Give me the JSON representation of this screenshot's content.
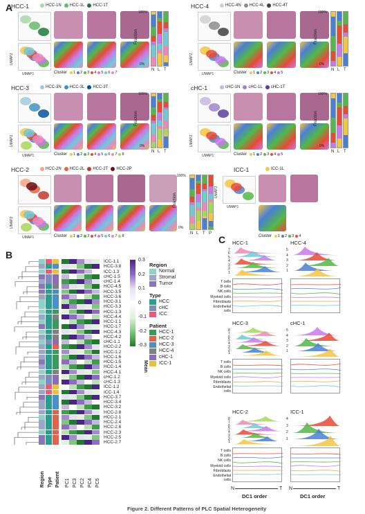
{
  "panel_a": {
    "label": "A",
    "umap_x": "UMAP1",
    "umap_y": "UMAP2",
    "cluster_word": "Cluster",
    "fraction_label": "Fraction",
    "tick_100": "100%",
    "tick_0": "0%",
    "blocks": [
      {
        "title": "HCC-1",
        "samples": [
          {
            "name": "HCC-1N",
            "color": "#a8d8a8"
          },
          {
            "name": "HCC-1L",
            "color": "#66bb6a"
          },
          {
            "name": "HCC-1T",
            "color": "#1b7a3a"
          }
        ],
        "clusters": [
          "1",
          "2",
          "3",
          "4",
          "5",
          "6",
          "7"
        ],
        "bar_labels": [
          "N",
          "L",
          "T"
        ]
      },
      {
        "title": "HCC-4",
        "samples": [
          {
            "name": "HCC-4N",
            "color": "#d0d0d0"
          },
          {
            "name": "HCC-4L",
            "color": "#8c8c8c"
          },
          {
            "name": "HCC-4T",
            "color": "#404040"
          }
        ],
        "clusters": [
          "1",
          "2",
          "3",
          "4",
          "5"
        ],
        "bar_labels": [
          "N",
          "L",
          "T"
        ]
      },
      {
        "title": "HCC-3",
        "samples": [
          {
            "name": "HCC-3N",
            "color": "#9ecae1"
          },
          {
            "name": "HCC-3L",
            "color": "#4292c6"
          },
          {
            "name": "HCC-3T",
            "color": "#08519c"
          }
        ],
        "clusters": [
          "1",
          "2",
          "3",
          "4",
          "5",
          "6",
          "7",
          "8"
        ],
        "bar_labels": [
          "N",
          "L",
          "T"
        ]
      },
      {
        "title": "cHC-1",
        "samples": [
          {
            "name": "cHC-1N",
            "color": "#c6b8e3"
          },
          {
            "name": "cHC-1L",
            "color": "#9e86cc"
          },
          {
            "name": "cHC-1T",
            "color": "#5e3c99"
          }
        ],
        "clusters": [
          "1",
          "2",
          "3",
          "4",
          "5"
        ],
        "bar_labels": [
          "N",
          "L",
          "T"
        ]
      },
      {
        "title": "HCC-2",
        "samples": [
          {
            "name": "HCC-2N",
            "color": "#f4a582"
          },
          {
            "name": "HCC-2L",
            "color": "#e8603c"
          },
          {
            "name": "HCC-2T",
            "color": "#c0392b"
          },
          {
            "name": "HCC-2P",
            "color": "#6b0f1a"
          }
        ],
        "clusters": [
          "1",
          "2",
          "3",
          "4",
          "5",
          "6",
          "7",
          "8"
        ],
        "bar_labels": [
          "N",
          "L",
          "T",
          "P"
        ]
      },
      {
        "title": "ICC-1",
        "samples": [
          {
            "name": "ICC-1L",
            "color": "#f2c94c"
          }
        ],
        "clusters": [
          "1",
          "2",
          "3",
          "4"
        ],
        "bar_labels": []
      }
    ],
    "cluster_colors": [
      "#f4c542",
      "#4a7fd6",
      "#54b848",
      "#e64b35",
      "#c879e8",
      "#6ec9d9",
      "#f088b6",
      "#a7d65a"
    ]
  },
  "panel_b": {
    "label": "B",
    "legend_region_title": "Region",
    "legend_region": [
      {
        "name": "Normal",
        "color": "#8fd1c6"
      },
      {
        "name": "Stromal",
        "color": "#9aa7c7"
      },
      {
        "name": "Tumor",
        "color": "#8a76b6"
      }
    ],
    "legend_type_title": "Type",
    "legend_type": [
      {
        "name": "HCC",
        "color": "#2a9d8f"
      },
      {
        "name": "cHC",
        "color": "#7a8fbf"
      },
      {
        "name": "ICC",
        "color": "#e85d75"
      }
    ],
    "legend_patient_title": "Patient",
    "legend_patient": [
      {
        "name": "HCC-1",
        "color": "#3c9a5f"
      },
      {
        "name": "HCC-2",
        "color": "#e0634a"
      },
      {
        "name": "HCC-3",
        "color": "#4a90c8"
      },
      {
        "name": "HCC-4",
        "color": "#808080"
      },
      {
        "name": "cHC-1",
        "color": "#8c6cb5"
      },
      {
        "name": "ICC-1",
        "color": "#e9c23a"
      }
    ],
    "colorbar_title": "Mean",
    "colorbar_ticks": [
      "0.3",
      "0.2",
      "0.1",
      "0",
      "-0.1",
      "-0.2",
      "-0.3"
    ],
    "col_bottom_labels": [
      "Region",
      "Type",
      "Patient",
      "PC1",
      "PC3",
      "PC2",
      "PC4",
      "PC5"
    ],
    "rows": [
      "ICC-1.1",
      "HCC-3.8",
      "ICC-1.3",
      "cHC-1.5",
      "cHC-1.4",
      "HCC-4.5",
      "HCC-3.5",
      "HCC-3.6",
      "HCC-3.1",
      "HCC-3.3",
      "HCC-1.3",
      "HCC-4.4",
      "HCC-1.1",
      "HCC-1.7",
      "HCC-4.3",
      "HCC-4.2",
      "cHC-1.1",
      "HCC-2.2",
      "HCC-1.2",
      "HCC-1.6",
      "HCC-1.5",
      "HCC-1.4",
      "HCC-4.1",
      "cHC-1.2",
      "cHC-1.3",
      "ICC-1.2",
      "ICC-1.4",
      "HCC-3.7",
      "HCC-3.4",
      "HCC-3.2",
      "HCC-2.8",
      "HCC-2.1",
      "HCC-2.4",
      "HCC-2.6",
      "HCC-2.3",
      "HCC-2.5",
      "HCC-2.7"
    ]
  },
  "panel_c": {
    "label": "C",
    "cell_types": [
      "T cells",
      "B cells",
      "NK cells",
      "Myeloid cells",
      "Fibroblasts",
      "Endothelial cells"
    ],
    "x_axis": "DC1 order",
    "n_label": "N",
    "t_label": "T",
    "blocks": [
      {
        "title": "HCC-1",
        "ridges": [
          "7",
          "6",
          "5",
          "4",
          "3",
          "2",
          "1"
        ]
      },
      {
        "title": "HCC-4",
        "ridges": [
          "5",
          "4",
          "3",
          "2",
          "1"
        ]
      },
      {
        "title": "HCC-3",
        "ridges": [
          "8",
          "7",
          "6",
          "5",
          "4",
          "3",
          "2",
          "1"
        ]
      },
      {
        "title": "cHC-1",
        "ridges": [
          "5",
          "4",
          "3",
          "2",
          "1"
        ]
      },
      {
        "title": "HCC-2",
        "ridges": [
          "8",
          "7",
          "6",
          "5",
          "4",
          "3",
          "2",
          "1"
        ]
      },
      {
        "title": "ICC-1",
        "ridges": [
          "4",
          "3",
          "2",
          "1"
        ]
      }
    ],
    "curve_colors": [
      "#e64b35",
      "#4a7fd6",
      "#54b848",
      "#c879e8",
      "#f4a23a",
      "#6ec9d9"
    ]
  },
  "caption": "Figure 2. Different Patterns of PLC Spatial Heterogeneity"
}
